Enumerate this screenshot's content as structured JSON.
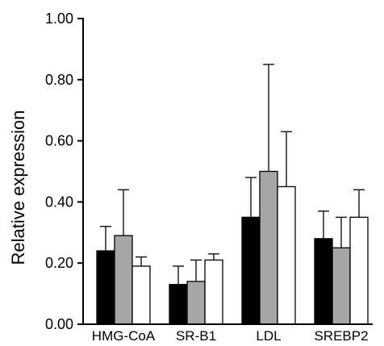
{
  "chart_data": {
    "type": "bar",
    "title": "",
    "xlabel": "",
    "ylabel": "Relative expression",
    "ylim": [
      0,
      1.0
    ],
    "yticks": [
      "0.00",
      "0.20",
      "0.40",
      "0.60",
      "0.80",
      "1.00"
    ],
    "grid": false,
    "legend": "none",
    "categories": [
      "HMG-CoA",
      "SR-B1",
      "LDL",
      "SREBP2"
    ],
    "series": [
      {
        "color": "#000000",
        "values": [
          0.24,
          0.13,
          0.35,
          0.28
        ],
        "errors": [
          0.08,
          0.06,
          0.13,
          0.09
        ]
      },
      {
        "color": "#a6a6a6",
        "values": [
          0.29,
          0.14,
          0.5,
          0.25
        ],
        "errors": [
          0.15,
          0.07,
          0.35,
          0.1
        ]
      },
      {
        "color": "#ffffff",
        "values": [
          0.19,
          0.21,
          0.45,
          0.35
        ],
        "errors": [
          0.03,
          0.02,
          0.18,
          0.09
        ]
      }
    ]
  }
}
